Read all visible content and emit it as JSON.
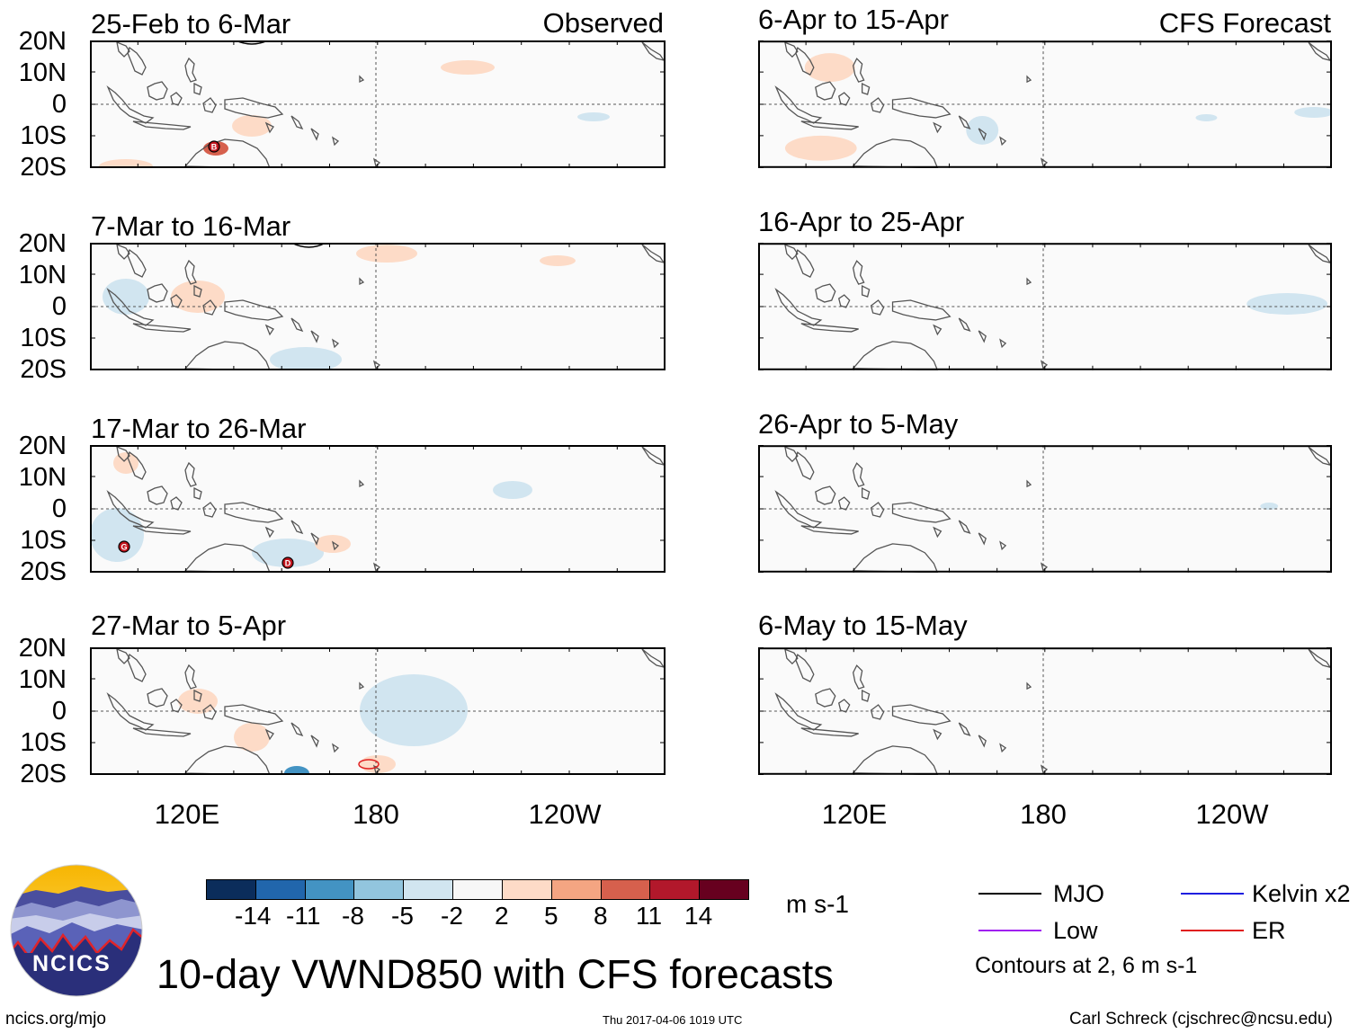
{
  "columns": {
    "left": {
      "label": "Observed"
    },
    "right": {
      "label": "CFS Forecast"
    }
  },
  "panels": {
    "left": [
      {
        "period": "25-Feb to 6-Mar"
      },
      {
        "period": "7-Mar to 16-Mar"
      },
      {
        "period": "17-Mar to 26-Mar"
      },
      {
        "period": "27-Mar to 5-Apr"
      }
    ],
    "right": [
      {
        "period": "6-Apr to 15-Apr"
      },
      {
        "period": "16-Apr to 25-Apr"
      },
      {
        "period": "26-Apr to 5-May"
      },
      {
        "period": "6-May to 15-May"
      }
    ]
  },
  "axes": {
    "lat_labels": [
      "20N",
      "10N",
      "0",
      "10S",
      "20S"
    ],
    "lon_labels": [
      "120E",
      "180",
      "120W"
    ]
  },
  "colorbar": {
    "ticks": [
      "-14",
      "-11",
      "-8",
      "-5",
      "-2",
      "2",
      "5",
      "8",
      "11",
      "14"
    ],
    "unit": "m s-1",
    "colors": [
      "#0b2d5b",
      "#2166ac",
      "#4393c3",
      "#92c5de",
      "#d1e5f0",
      "#f7f7f7",
      "#fddbc7",
      "#f4a582",
      "#d6604d",
      "#b2182b",
      "#67001f"
    ]
  },
  "legend": {
    "items": {
      "mjo": {
        "label": "MJO",
        "color": "#000000"
      },
      "kelvin": {
        "label": "Kelvin x2",
        "color": "#1f1fe0"
      },
      "low": {
        "label": "Low",
        "color": "#a020f0"
      },
      "er": {
        "label": "ER",
        "color": "#e01f1f"
      }
    },
    "contours_note": "Contours at 2, 6 m s-1"
  },
  "title": "10-day VWND850 with CFS forecasts",
  "logo_text": "NCICS",
  "footer": {
    "left": "ncics.org/mjo",
    "center": "Thu 2017-04-06 1019 UTC",
    "right": "Carl Schreck (cjschrec@ncsu.edu)"
  },
  "storm_markers": {
    "panel_1": [
      "B"
    ],
    "panel_3": [
      "G",
      "D"
    ]
  }
}
